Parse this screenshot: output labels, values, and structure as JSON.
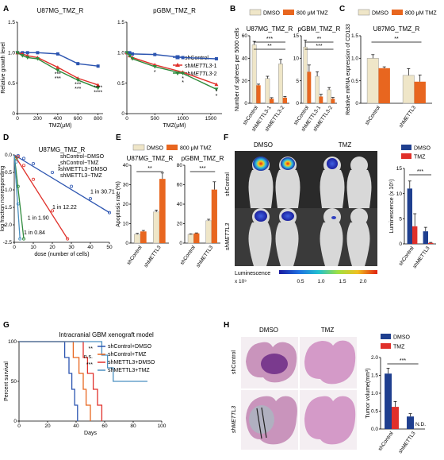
{
  "panels": {
    "A": "A",
    "B": "B",
    "C": "C",
    "D": "D",
    "E": "E",
    "F": "F",
    "G": "G",
    "H": "H"
  },
  "colors": {
    "blue": "#2b54b0",
    "red": "#e0302a",
    "green": "#2f8a3c",
    "beige": "#efe6c8",
    "orange": "#e8661f",
    "steelblue": "#4a8fc0",
    "navy": "#1f3f8f"
  },
  "chart_data": [
    {
      "id": "A1",
      "type": "line",
      "title": "U87MG_TMZ_R",
      "xlabel": "TMZ(μM)",
      "ylabel": "Relative growth level",
      "x": [
        0,
        50,
        100,
        200,
        400,
        600,
        800
      ],
      "xticks": [
        0,
        200,
        400,
        600,
        800
      ],
      "ylim": [
        0,
        1.5
      ],
      "yticks": [
        "0",
        "0.5",
        "1.0",
        "1.5"
      ],
      "series": [
        {
          "name": "shControl",
          "color": "#2b54b0",
          "values": [
            1.0,
            1.0,
            1.0,
            1.0,
            0.98,
            0.82,
            0.78
          ]
        },
        {
          "name": "shMETTL3-1",
          "color": "#e0302a",
          "values": [
            1.0,
            0.98,
            0.95,
            0.92,
            0.76,
            0.58,
            0.47
          ]
        },
        {
          "name": "shMETTL3-2",
          "color": "#2f8a3c",
          "values": [
            1.0,
            0.95,
            0.92,
            0.9,
            0.71,
            0.55,
            0.42
          ]
        }
      ],
      "annotations": [
        {
          "x": 400,
          "y": 0.62,
          "text": "***"
        },
        {
          "x": 400,
          "y": 0.55,
          "text": "***"
        },
        {
          "x": 600,
          "y": 0.45,
          "text": "***"
        },
        {
          "x": 600,
          "y": 0.38,
          "text": "***"
        },
        {
          "x": 800,
          "y": 0.4,
          "text": "****"
        },
        {
          "x": 800,
          "y": 0.32,
          "text": "****"
        }
      ]
    },
    {
      "id": "A2",
      "type": "line",
      "title": "pGBM_TMZ_R",
      "xlabel": "TMZ(μM)",
      "ylabel": "",
      "x": [
        0,
        50,
        100,
        500,
        1000,
        1600
      ],
      "xticks": [
        0,
        500,
        1000,
        1500
      ],
      "ylim": [
        0,
        1.5
      ],
      "yticks": [
        "0",
        "0.5",
        "1.0",
        "1.5"
      ],
      "series": [
        {
          "name": "shControl",
          "color": "#2b54b0",
          "values": [
            1.0,
            1.0,
            0.98,
            0.97,
            0.92,
            0.9
          ]
        },
        {
          "name": "shMETTL3-1",
          "color": "#e0302a",
          "values": [
            1.0,
            0.95,
            0.92,
            0.8,
            0.68,
            0.48
          ]
        },
        {
          "name": "shMETTL3-2",
          "color": "#2f8a3c",
          "values": [
            1.0,
            0.95,
            0.9,
            0.77,
            0.66,
            0.4
          ]
        }
      ],
      "annotations": [
        {
          "x": 500,
          "y": 0.65,
          "text": "*"
        },
        {
          "x": 1000,
          "y": 0.55,
          "text": "*"
        },
        {
          "x": 1000,
          "y": 0.48,
          "text": "*"
        },
        {
          "x": 1600,
          "y": 0.33,
          "text": "*"
        },
        {
          "x": 1600,
          "y": 0.26,
          "text": "*"
        }
      ]
    },
    {
      "id": "B1",
      "type": "bar",
      "title": "U87MG_TMZ_R",
      "ylabel": "Number of spheres per 5000 cells",
      "categories": [
        "shControl",
        "shMETTL3-1",
        "shMETTL3-2"
      ],
      "ylim": [
        0,
        60
      ],
      "yticks": [
        "0",
        "20",
        "40",
        "60"
      ],
      "series": [
        {
          "name": "DMSO",
          "color": "#efe6c8",
          "values": [
            52,
            22,
            35
          ],
          "errors": [
            3,
            2,
            4
          ]
        },
        {
          "name": "800 μM TMZ",
          "color": "#e8661f",
          "values": [
            16,
            4,
            5
          ],
          "errors": [
            1,
            1,
            1
          ]
        }
      ],
      "annotations": [
        "***",
        "**"
      ]
    },
    {
      "id": "B2",
      "type": "bar",
      "title": "pGBM_TMZ_R",
      "ylabel": "",
      "categories": [
        "shControl",
        "shMETTL3-1",
        "shMETTL3-2"
      ],
      "ylim": [
        0,
        15
      ],
      "yticks": [
        "0",
        "5",
        "10",
        "15"
      ],
      "series": [
        {
          "name": "DMSO",
          "color": "#efe6c8",
          "values": [
            12.5,
            6,
            3
          ],
          "errors": [
            1.5,
            1,
            0.5
          ]
        },
        {
          "name": "800 μM TMZ",
          "color": "#e8661f",
          "values": [
            7,
            1.5,
            1
          ],
          "errors": [
            1.5,
            0.5,
            0.3
          ]
        }
      ],
      "annotations": [
        "**",
        "***"
      ]
    },
    {
      "id": "C",
      "type": "bar",
      "title": "U87MG_TMZ_R",
      "ylabel": "Relative mRNA expression of CD133",
      "categories": [
        "shControl",
        "shMETTL3"
      ],
      "ylim": [
        0,
        1.5
      ],
      "yticks": [
        "0",
        "0.5",
        "1.0",
        "1.5"
      ],
      "series": [
        {
          "name": "DMSO",
          "color": "#efe6c8",
          "values": [
            1.0,
            0.62
          ],
          "errors": [
            0.08,
            0.15
          ]
        },
        {
          "name": "800 μM TMZ",
          "color": "#e8661f",
          "values": [
            0.78,
            0.48
          ],
          "errors": [
            0.03,
            0.15
          ]
        }
      ],
      "annotations": [
        "**"
      ]
    },
    {
      "id": "D",
      "type": "scatter",
      "title": "U87MG_TMZ_R",
      "xlabel": "dose (number of cells)",
      "ylabel": "log fraction nonresponding",
      "xlim": [
        0,
        50
      ],
      "ylim": [
        -2.5,
        0
      ],
      "xticks": [
        "0",
        "10",
        "20",
        "30",
        "40",
        "50"
      ],
      "yticks": [
        "0.0",
        "-0.5",
        "-1.0",
        "-1.5",
        "-2.0",
        "-2.5"
      ],
      "series": [
        {
          "name": "shControl−DMSO",
          "color": "#2b54b0",
          "values": [
            [
              2,
              -0.02
            ],
            [
              5,
              -0.1
            ],
            [
              10,
              -0.25
            ],
            [
              20,
              -0.5
            ],
            [
              30,
              -0.9
            ],
            [
              40,
              -1.25
            ],
            [
              50,
              -1.65
            ]
          ],
          "annotation": "1 in 30.71"
        },
        {
          "name": "shControl−TMZ",
          "color": "#e0302a",
          "values": [
            [
              2,
              -0.05
            ],
            [
              5,
              -0.3
            ],
            [
              10,
              -0.7
            ],
            [
              20,
              -1.6
            ],
            [
              28,
              -2.4
            ]
          ],
          "annotation": "1 in 12.22"
        },
        {
          "name": "shMETTL3−DMSO",
          "color": "#2f8a3c",
          "values": [
            [
              1,
              -0.1
            ],
            [
              2,
              -0.9
            ],
            [
              5,
              -2.4
            ]
          ],
          "annotation": "1 in 1.90"
        },
        {
          "name": "shMETTL3−TMZ",
          "color": "#4a8fc0",
          "values": [
            [
              1,
              -0.2
            ],
            [
              2,
              -1.4
            ],
            [
              3,
              -2.4
            ]
          ],
          "annotation": "1 in 0.84"
        }
      ],
      "sig": "***"
    },
    {
      "id": "E1",
      "type": "bar",
      "title": "U87MG_TMZ_R",
      "ylabel": "Apoptosis rate (%)",
      "categories": [
        "shControl",
        "shMETTL3"
      ],
      "ylim": [
        0,
        40
      ],
      "yticks": [
        "0",
        "10",
        "20",
        "30",
        "40"
      ],
      "series": [
        {
          "name": "DMSO",
          "color": "#efe6c8",
          "values": [
            4.5,
            16
          ],
          "errors": [
            0.5,
            1
          ]
        },
        {
          "name": "800 μM TMZ",
          "color": "#e8661f",
          "values": [
            6,
            33
          ],
          "errors": [
            0.5,
            3
          ]
        }
      ],
      "annotations": [
        "**"
      ]
    },
    {
      "id": "E2",
      "type": "bar",
      "title": "pGBM_TMZ_R",
      "ylabel": "",
      "categories": [
        "shControl",
        "shMETTL3"
      ],
      "ylim": [
        0,
        80
      ],
      "yticks": [
        "0",
        "20",
        "40",
        "60",
        "80"
      ],
      "series": [
        {
          "name": "DMSO",
          "color": "#efe6c8",
          "values": [
            9,
            23
          ],
          "errors": [
            0.5,
            1.5
          ]
        },
        {
          "name": "800 μM TMZ",
          "color": "#e8661f",
          "values": [
            10,
            55
          ],
          "errors": [
            0.5,
            8
          ]
        }
      ],
      "annotations": [
        "***"
      ]
    },
    {
      "id": "F",
      "type": "bar",
      "ylabel": "Luminescence (x 10⁵)",
      "categories": [
        "shControl",
        "shMETTL3"
      ],
      "ylim": [
        0,
        15
      ],
      "yticks": [
        "0",
        "5",
        "10",
        "15"
      ],
      "series": [
        {
          "name": "DMSO",
          "color": "#1f3f8f",
          "values": [
            11,
            2.5
          ],
          "errors": [
            1.5,
            0.8
          ]
        },
        {
          "name": "TMZ",
          "color": "#e0302a",
          "values": [
            3.5,
            0.2
          ],
          "errors": [
            2.5,
            0.1
          ]
        }
      ],
      "annotations": [
        "***"
      ]
    },
    {
      "id": "G",
      "type": "line",
      "title": "Intracranial GBM xenograft model",
      "xlabel": "Days",
      "ylabel": "Percent survival",
      "xlim": [
        0,
        100
      ],
      "ylim": [
        0,
        100
      ],
      "xticks": [
        "0",
        "20",
        "40",
        "60",
        "80",
        "100"
      ],
      "yticks": [
        "0",
        "50",
        "100"
      ],
      "series": [
        {
          "name": "shControl+DMSO",
          "color": "#2b54b0",
          "steps": [
            [
              0,
              100
            ],
            [
              32,
              100
            ],
            [
              32,
              80
            ],
            [
              35,
              80
            ],
            [
              35,
              60
            ],
            [
              37,
              60
            ],
            [
              37,
              40
            ],
            [
              39,
              40
            ],
            [
              39,
              20
            ],
            [
              41,
              20
            ],
            [
              41,
              0
            ]
          ]
        },
        {
          "name": "shControl+TMZ",
          "color": "#e8661f",
          "steps": [
            [
              0,
              100
            ],
            [
              38,
              100
            ],
            [
              38,
              80
            ],
            [
              42,
              80
            ],
            [
              42,
              60
            ],
            [
              45,
              60
            ],
            [
              45,
              40
            ],
            [
              47,
              40
            ],
            [
              47,
              20
            ],
            [
              50,
              20
            ],
            [
              50,
              0
            ]
          ]
        },
        {
          "name": "shMETTL3+DMSO",
          "color": "#e0302a",
          "steps": [
            [
              0,
              100
            ],
            [
              45,
              100
            ],
            [
              45,
              80
            ],
            [
              48,
              80
            ],
            [
              48,
              60
            ],
            [
              52,
              60
            ],
            [
              52,
              40
            ],
            [
              55,
              40
            ],
            [
              55,
              20
            ],
            [
              58,
              20
            ],
            [
              58,
              0
            ]
          ]
        },
        {
          "name": "shMETTL3+TMZ",
          "color": "#4a8fc0",
          "steps": [
            [
              0,
              100
            ],
            [
              58,
              100
            ],
            [
              58,
              83
            ],
            [
              62,
              83
            ],
            [
              62,
              67
            ],
            [
              66,
              67
            ],
            [
              66,
              50
            ],
            [
              90,
              50
            ]
          ]
        }
      ],
      "sig": [
        "**",
        "n.s.",
        "***"
      ]
    },
    {
      "id": "H",
      "type": "bar",
      "ylabel": "Tumor volume(mm³)",
      "categories": [
        "shControl",
        "shMETTL3"
      ],
      "ylim": [
        0,
        2.0
      ],
      "yticks": [
        "0.0",
        "0.5",
        "1.0",
        "1.5",
        "2.0"
      ],
      "series": [
        {
          "name": "DMSO",
          "color": "#1f3f8f",
          "values": [
            1.55,
            0.35
          ],
          "errors": [
            0.15,
            0.08
          ]
        },
        {
          "name": "TMZ",
          "color": "#e0302a",
          "values": [
            0.62,
            0
          ],
          "errors": [
            0.15,
            0
          ]
        }
      ],
      "na_label": "N.D.",
      "annotations": [
        "***"
      ]
    }
  ],
  "legends": {
    "dmso": "DMSO",
    "tmz800": "800 μM TMZ",
    "tmz": "TMZ",
    "shControl": "shControl",
    "shMETTL3_1_pre": "sh",
    "shMETTL3_1_it": "METTL3",
    "shMETTL3_1_post": "-1",
    "shMETTL3_2_post": "-2"
  },
  "F_panel": {
    "col_dmso": "DMSO",
    "col_tmz": "TMZ",
    "row_ctrl": "shControl",
    "row_mettl3": "shMETTL3",
    "lum_label": "Luminescence",
    "lum_unit": "x 10⁵",
    "lum_ticks": [
      "0.5",
      "1.0",
      "1.5",
      "2.0"
    ]
  },
  "H_panel": {
    "col_dmso": "DMSO",
    "col_tmz": "TMZ",
    "row_ctrl": "shControl",
    "row_mettl3": "shMETTL3"
  }
}
